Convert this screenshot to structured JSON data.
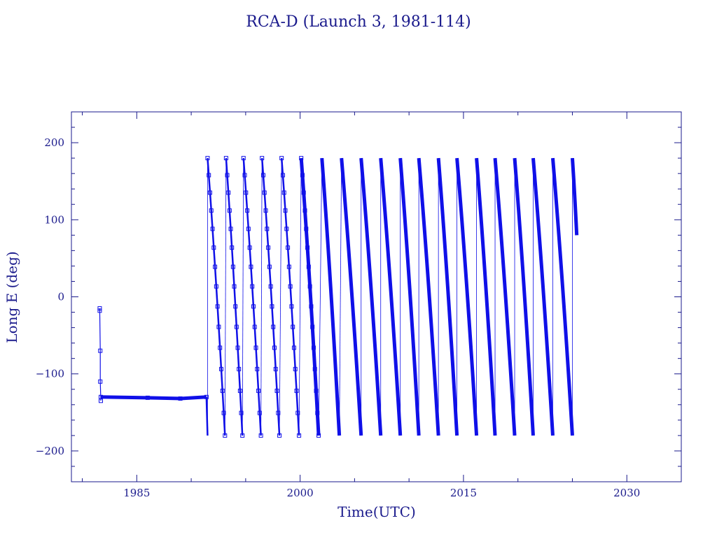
{
  "chart_data": {
    "type": "line",
    "title": "RCA-D (Launch 3, 1981-114)",
    "xlabel": "Time(UTC)",
    "ylabel": "Long E (deg)",
    "xlim": [
      1979,
      2035
    ],
    "ylim": [
      -240,
      240
    ],
    "x_ticks": [
      1985,
      2000,
      2015,
      2030
    ],
    "x_tick_labels": [
      "1985",
      "2000",
      "2015",
      "2030"
    ],
    "y_ticks": [
      -200,
      -100,
      0,
      100,
      200
    ],
    "y_tick_labels": [
      "−200",
      "−100",
      "0",
      "100",
      "200"
    ],
    "grid": false,
    "colors": {
      "series": "#1010e8",
      "axes": "#1a1a8c",
      "text": "#1a1a8c"
    },
    "stationkeeping": [
      {
        "x": [
          1981.6,
          1981.6,
          1981.65,
          1981.65,
          1981.7
        ],
        "y": [
          -15,
          -18,
          -70,
          -110,
          -135
        ]
      },
      {
        "x": [
          1981.7,
          1986.0,
          1989.0,
          1991.4
        ],
        "y": [
          -130,
          -131,
          -132,
          -130
        ]
      }
    ],
    "drift_segments": [
      {
        "x_start": 1991.5,
        "x_end": 1993.1,
        "y_start": 180,
        "y_end": -180
      },
      {
        "x_start": 1993.2,
        "x_end": 1994.7,
        "y_start": 180,
        "y_end": -180
      },
      {
        "x_start": 1994.8,
        "x_end": 1996.4,
        "y_start": 180,
        "y_end": -180
      },
      {
        "x_start": 1996.5,
        "x_end": 1998.1,
        "y_start": 180,
        "y_end": -180
      },
      {
        "x_start": 1998.3,
        "x_end": 1999.9,
        "y_start": 180,
        "y_end": -180
      },
      {
        "x_start": 2000.1,
        "x_end": 2001.7,
        "y_start": 180,
        "y_end": -180
      },
      {
        "x_start": 2002.0,
        "x_end": 2003.6,
        "y_start": 180,
        "y_end": -180
      },
      {
        "x_start": 2003.8,
        "x_end": 2005.6,
        "y_start": 180,
        "y_end": -180
      },
      {
        "x_start": 2005.6,
        "x_end": 2007.4,
        "y_start": 180,
        "y_end": -180
      },
      {
        "x_start": 2007.4,
        "x_end": 2009.2,
        "y_start": 180,
        "y_end": -180
      },
      {
        "x_start": 2009.2,
        "x_end": 2010.9,
        "y_start": 180,
        "y_end": -180
      },
      {
        "x_start": 2010.9,
        "x_end": 2012.7,
        "y_start": 180,
        "y_end": -180
      },
      {
        "x_start": 2012.7,
        "x_end": 2014.4,
        "y_start": 180,
        "y_end": -180
      },
      {
        "x_start": 2014.4,
        "x_end": 2016.2,
        "y_start": 180,
        "y_end": -180
      },
      {
        "x_start": 2016.2,
        "x_end": 2017.9,
        "y_start": 180,
        "y_end": -180
      },
      {
        "x_start": 2017.9,
        "x_end": 2019.7,
        "y_start": 180,
        "y_end": -180
      },
      {
        "x_start": 2019.7,
        "x_end": 2021.4,
        "y_start": 180,
        "y_end": -180
      },
      {
        "x_start": 2021.4,
        "x_end": 2023.2,
        "y_start": 180,
        "y_end": -180
      },
      {
        "x_start": 2023.2,
        "x_end": 2025.0,
        "y_start": 180,
        "y_end": -180
      },
      {
        "x_start": 2025.0,
        "x_end": 2025.4,
        "y_start": 180,
        "y_end": 80
      }
    ]
  }
}
